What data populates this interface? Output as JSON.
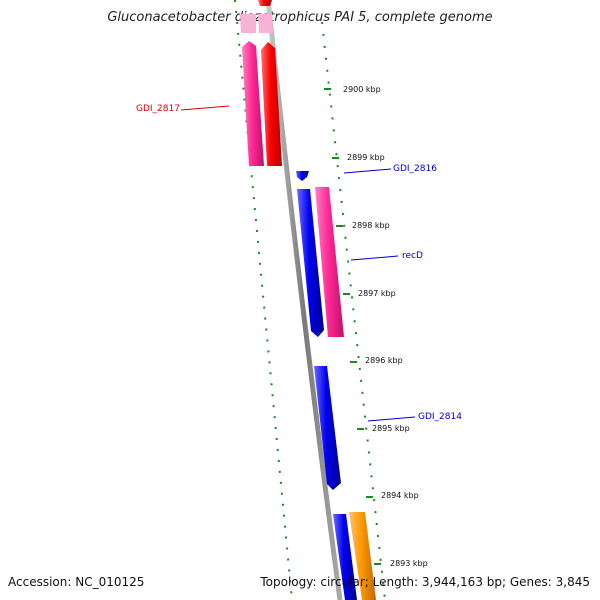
{
  "title": "Gluconacetobacter diazotrophicus PAI 5, complete genome",
  "accession_text": "Accession: NC_010125",
  "summary_text": "Topology: circular; Length: 3,944,163 bp; Genes: 3,845",
  "ticks": [
    "2900 kbp",
    "2899 kbp",
    "2898 kbp",
    "2897 kbp",
    "2896 kbp",
    "2895 kbp",
    "2894 kbp",
    "2893 kbp"
  ],
  "gene_labels": {
    "gdi_2817": "GDI_2817",
    "gdi_2816": "GDI_2816",
    "recd": "recD",
    "gdi_2814": "GDI_2814"
  },
  "colors": {
    "backbone": "#8c8c8c",
    "tick_mark": "#1a8a1a",
    "gc_dots": "#1a8a1a",
    "forward_cds": "#ff0000",
    "forward_rna_pink": "#ff2a96",
    "reverse_cds": "#0000ee",
    "orange_cds": "#ff9900",
    "label_red": "#dd0000",
    "label_blue": "#0000cc"
  }
}
